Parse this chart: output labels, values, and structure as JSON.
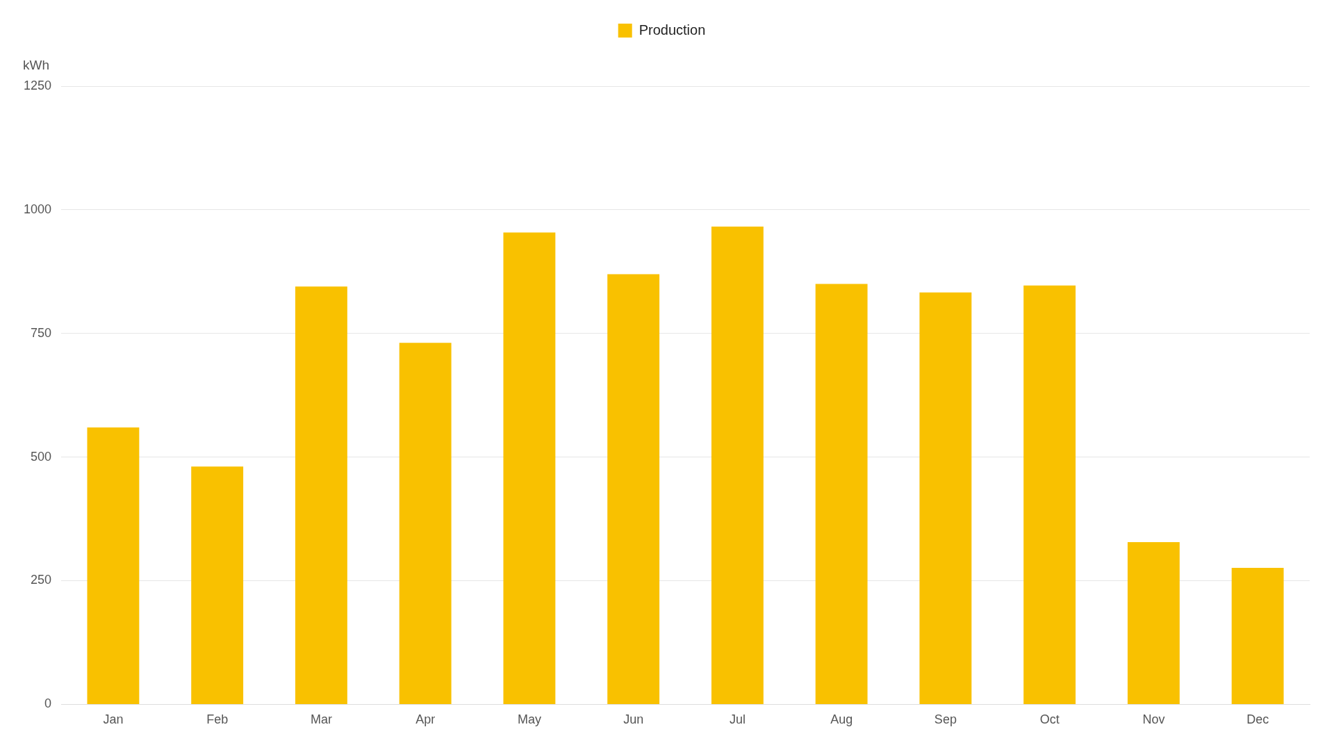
{
  "chart_data": {
    "type": "bar",
    "ylabel": "kWh",
    "categories": [
      "Jan",
      "Feb",
      "Mar",
      "Apr",
      "May",
      "Jun",
      "Jul",
      "Aug",
      "Sep",
      "Oct",
      "Nov",
      "Dec"
    ],
    "series": [
      {
        "name": "Production",
        "color": "#f9c100",
        "values": [
          560,
          481,
          845,
          731,
          954,
          870,
          966,
          850,
          833,
          847,
          328,
          276
        ]
      }
    ],
    "ylim": [
      0,
      1250
    ],
    "yticks": [
      0,
      250,
      500,
      750,
      1000,
      1250
    ],
    "grid": "y",
    "legend": "top"
  }
}
